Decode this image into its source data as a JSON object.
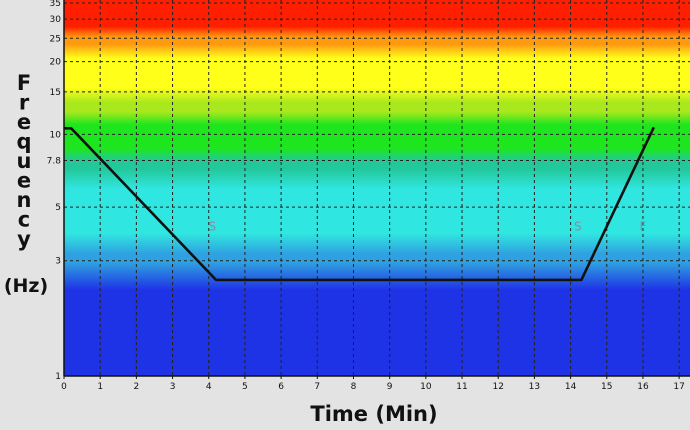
{
  "chart_data": {
    "type": "line",
    "xlabel": "Time (Min)",
    "ylabel_letters": [
      "F",
      "r",
      "e",
      "q",
      "u",
      "e",
      "n",
      "c",
      "y"
    ],
    "ylabel_unit": "(Hz)",
    "xlim": [
      0,
      17.3
    ],
    "ylim": [
      1,
      36
    ],
    "y_scale": "log",
    "grid": true,
    "x_ticks": [
      "0",
      "1",
      "2",
      "3",
      "4",
      "5",
      "6",
      "7",
      "8",
      "9",
      "10",
      "11",
      "12",
      "13",
      "14",
      "15",
      "16",
      "17"
    ],
    "y_ticks": [
      {
        "value": 1,
        "label": "1"
      },
      {
        "value": 3,
        "label": "3"
      },
      {
        "value": 5,
        "label": "5"
      },
      {
        "value": 7.8,
        "label": "7.8"
      },
      {
        "value": 10,
        "label": "10"
      },
      {
        "value": 15,
        "label": "15"
      },
      {
        "value": 20,
        "label": "20"
      },
      {
        "value": 25,
        "label": "25"
      },
      {
        "value": 30,
        "label": "30"
      },
      {
        "value": 35,
        "label": "35"
      }
    ],
    "bands": [
      {
        "from": 1,
        "to": 2.85,
        "color": "#1e32e6"
      },
      {
        "from": 2.85,
        "to": 3.3,
        "color": "#2fa0e0"
      },
      {
        "from": 3.3,
        "to": 7.0,
        "color": "#30e6e0"
      },
      {
        "from": 7.0,
        "to": 8.0,
        "color": "#22c89a"
      },
      {
        "from": 8.0,
        "to": 12.0,
        "color": "#1ee61e"
      },
      {
        "from": 12.0,
        "to": 14.0,
        "color": "#a8e81c"
      },
      {
        "from": 14.0,
        "to": 23.0,
        "color": "#ffff1a"
      },
      {
        "from": 23.0,
        "to": 26.0,
        "color": "#ff9a10"
      },
      {
        "from": 26.0,
        "to": 36.0,
        "color": "#ff1f00"
      }
    ],
    "series": [
      {
        "color": "#111111",
        "points": [
          [
            0,
            10.6
          ],
          [
            0.2,
            10.6
          ],
          [
            4.2,
            2.5
          ],
          [
            14.3,
            2.5
          ],
          [
            16.3,
            10.7
          ]
        ]
      }
    ],
    "markers": [
      {
        "x": 4.1,
        "y": 4.0,
        "label": "S"
      },
      {
        "x": 14.2,
        "y": 4.0,
        "label": "S"
      },
      {
        "x": 16.0,
        "y": 4.0,
        "label": "F"
      }
    ]
  }
}
